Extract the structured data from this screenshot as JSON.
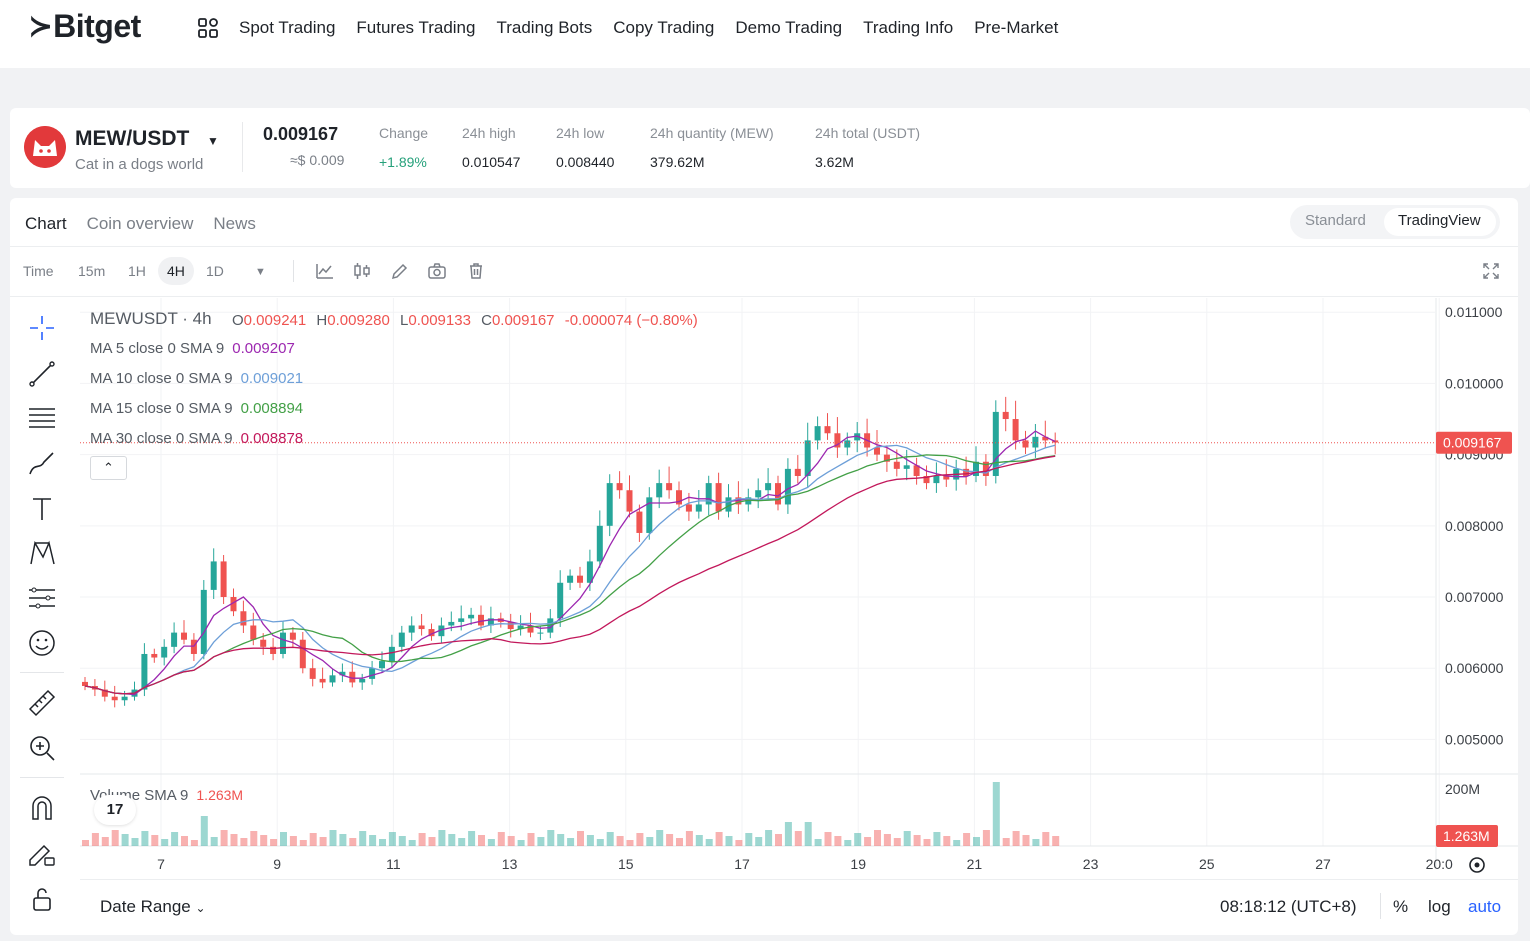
{
  "brand": {
    "mark": "≻",
    "name": "Bitget"
  },
  "nav": [
    "Spot Trading",
    "Futures Trading",
    "Trading Bots",
    "Copy Trading",
    "Demo Trading",
    "Trading Info",
    "Pre-Market"
  ],
  "ticker": {
    "pair": "MEW/USDT",
    "subtitle": "Cat in a dogs world",
    "price": "0.009167",
    "price_usd": "≈$ 0.009",
    "stats": [
      {
        "label": "Change",
        "value": "+1.89%"
      },
      {
        "label": "24h high",
        "value": "0.010547"
      },
      {
        "label": "24h low",
        "value": "0.008440"
      },
      {
        "label": "24h quantity (MEW)",
        "value": "379.62M"
      },
      {
        "label": "24h total (USDT)",
        "value": "3.62M"
      }
    ]
  },
  "tabs": [
    "Chart",
    "Coin overview",
    "News"
  ],
  "view_toggle": [
    "Standard",
    "TradingView"
  ],
  "toolbar": {
    "time_label": "Time",
    "intervals": [
      "15m",
      "1H",
      "4H",
      "1D"
    ],
    "active_interval": "4H"
  },
  "legend": {
    "symbol": "MEWUSDT · 4h",
    "ohlc": [
      {
        "k": "O",
        "v": "0.009241"
      },
      {
        "k": "H",
        "v": "0.009280"
      },
      {
        "k": "L",
        "v": "0.009133"
      },
      {
        "k": "C",
        "v": "0.009167"
      }
    ],
    "change": "-0.000074 (−0.80%)",
    "ma": [
      {
        "label": "MA 5 close 0 SMA 9",
        "value": "0.009207",
        "color": "#9c27b0"
      },
      {
        "label": "MA 10 close 0 SMA 9",
        "value": "0.009021",
        "color": "#6d9fd8"
      },
      {
        "label": "MA 15 close 0 SMA 9",
        "value": "0.008894",
        "color": "#43a047"
      },
      {
        "label": "MA 30 close 0 SMA 9",
        "value": "0.008878",
        "color": "#c2185b"
      }
    ],
    "volume_label": "Volume SMA 9",
    "volume_value": "1.263M"
  },
  "chart_data": {
    "type": "candlestick",
    "y_ticks": [
      "0.011000",
      "0.010000",
      "0.009000",
      "0.008000",
      "0.007000",
      "0.006000",
      "0.005000"
    ],
    "ylim": [
      0.0045,
      0.0112
    ],
    "x_ticks": [
      "7",
      "9",
      "11",
      "13",
      "15",
      "17",
      "19",
      "21",
      "23",
      "25",
      "27",
      "20:0"
    ],
    "last_price_label": "0.009167",
    "last_price": 0.009167,
    "volume_axis_label": "200M",
    "volume_last_label": "1.263M",
    "close_series": [
      0.00575,
      0.0057,
      0.0056,
      0.00555,
      0.0056,
      0.0057,
      0.0062,
      0.00615,
      0.0063,
      0.0065,
      0.0064,
      0.0062,
      0.0071,
      0.0075,
      0.007,
      0.0068,
      0.0066,
      0.0064,
      0.0063,
      0.0062,
      0.0065,
      0.0064,
      0.006,
      0.00585,
      0.0058,
      0.0059,
      0.00595,
      0.0058,
      0.00585,
      0.006,
      0.0061,
      0.0063,
      0.0065,
      0.0066,
      0.00655,
      0.00645,
      0.0066,
      0.00665,
      0.0067,
      0.00675,
      0.0066,
      0.0067,
      0.00665,
      0.00655,
      0.0066,
      0.0065,
      0.0065,
      0.0067,
      0.0072,
      0.0073,
      0.0072,
      0.0075,
      0.008,
      0.0086,
      0.0085,
      0.0082,
      0.0079,
      0.0084,
      0.0086,
      0.0085,
      0.0083,
      0.0082,
      0.0083,
      0.0086,
      0.0082,
      0.0084,
      0.0083,
      0.0084,
      0.0085,
      0.0086,
      0.0083,
      0.0088,
      0.0087,
      0.0092,
      0.0094,
      0.0093,
      0.0091,
      0.0092,
      0.0093,
      0.0091,
      0.009,
      0.0089,
      0.0088,
      0.00885,
      0.0087,
      0.0086,
      0.0087,
      0.00865,
      0.0088,
      0.0087,
      0.0089,
      0.0087,
      0.0096,
      0.0095,
      0.0092,
      0.0091,
      0.00925,
      0.0092,
      0.00917
    ]
  },
  "date_range": "Date Range",
  "clock": "08:18:12 (UTC+8)",
  "bottom_opts": [
    "%",
    "log",
    "auto"
  ],
  "colors": {
    "up": "#26a69a",
    "down": "#ef5350",
    "accent": "#2962ff",
    "brand": "#e2393b"
  }
}
